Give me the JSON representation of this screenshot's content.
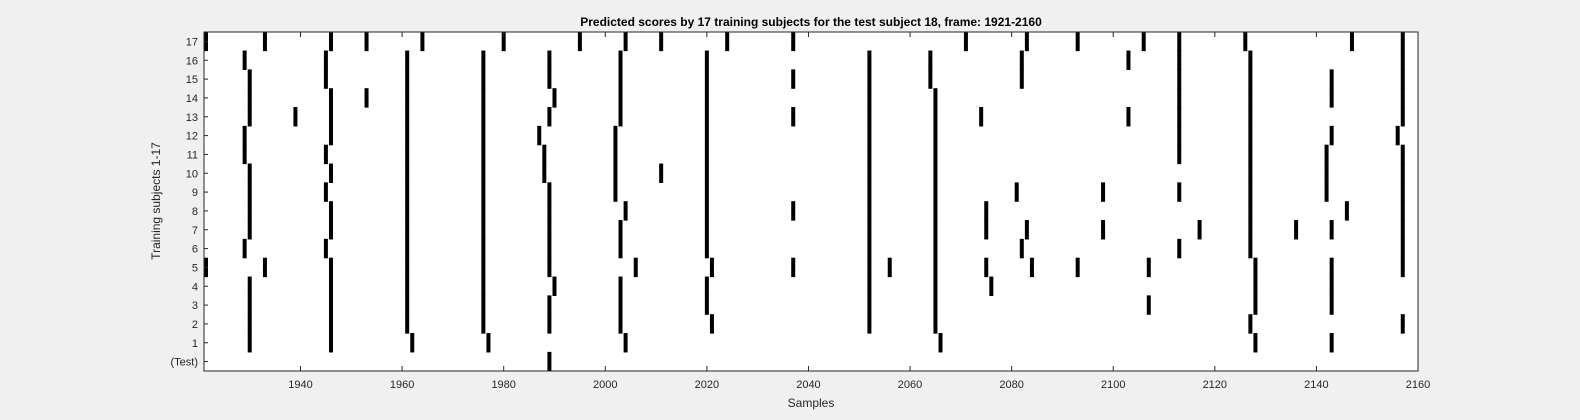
{
  "chart_data": {
    "type": "raster",
    "title": "Predicted scores by 17 training subjects for the test subject 18, frame: 1921-2160",
    "xlabel": "Samples",
    "ylabel": "Training subjects 1-17",
    "xlim": [
      1921,
      2160
    ],
    "xticks": [
      1940,
      1960,
      1980,
      2000,
      2020,
      2040,
      2060,
      2080,
      2100,
      2120,
      2140,
      2160
    ],
    "rows": [
      "(Test)",
      "1",
      "2",
      "3",
      "4",
      "5",
      "6",
      "7",
      "8",
      "9",
      "10",
      "11",
      "12",
      "13",
      "14",
      "15",
      "16",
      "17"
    ],
    "grid": false,
    "mark_color": "#000000",
    "events": {
      "(Test)": [
        1989
      ],
      "1": [
        1930,
        1946,
        1962,
        1977,
        2004,
        2066,
        2128,
        2143
      ],
      "2": [
        1930,
        1946,
        1961,
        1976,
        1989,
        2003,
        2021,
        2052,
        2065,
        2127,
        2157
      ],
      "3": [
        1930,
        1946,
        1961,
        1976,
        1989,
        2003,
        2020,
        2052,
        2065,
        2107,
        2128,
        2143
      ],
      "4": [
        1930,
        1946,
        1961,
        1976,
        1990,
        2003,
        2020,
        2052,
        2065,
        2076,
        2128,
        2143
      ],
      "5": [
        1921,
        1933,
        1946,
        1961,
        1976,
        1989,
        2006,
        2021,
        2037,
        2052,
        2056,
        2065,
        2075,
        2084,
        2093,
        2107,
        2128,
        2143,
        2157
      ],
      "6": [
        1929,
        1945,
        1961,
        1976,
        1989,
        2003,
        2020,
        2052,
        2065,
        2082,
        2113,
        2127,
        2157
      ],
      "7": [
        1930,
        1946,
        1961,
        1976,
        1989,
        2003,
        2020,
        2052,
        2065,
        2075,
        2083,
        2098,
        2117,
        2127,
        2136,
        2143,
        2157
      ],
      "8": [
        1930,
        1946,
        1961,
        1976,
        1989,
        2004,
        2020,
        2037,
        2052,
        2065,
        2075,
        2127,
        2146,
        2157
      ],
      "9": [
        1930,
        1945,
        1961,
        1976,
        1989,
        2002,
        2020,
        2052,
        2065,
        2081,
        2098,
        2113,
        2127,
        2142,
        2157
      ],
      "10": [
        1930,
        1946,
        1961,
        1976,
        1988,
        2002,
        2011,
        2020,
        2052,
        2065,
        2127,
        2142,
        2157
      ],
      "11": [
        1929,
        1945,
        1961,
        1976,
        1988,
        2002,
        2020,
        2052,
        2065,
        2113,
        2127,
        2142,
        2157
      ],
      "12": [
        1929,
        1946,
        1961,
        1976,
        1987,
        2002,
        2020,
        2052,
        2065,
        2113,
        2127,
        2143,
        2156
      ],
      "13": [
        1930,
        1939,
        1946,
        1961,
        1976,
        1989,
        2003,
        2020,
        2037,
        2052,
        2065,
        2074,
        2103,
        2113,
        2127,
        2157
      ],
      "14": [
        1930,
        1946,
        1953,
        1961,
        1976,
        1990,
        2003,
        2020,
        2052,
        2065,
        2113,
        2127,
        2143,
        2157
      ],
      "15": [
        1930,
        1945,
        1961,
        1976,
        1989,
        2003,
        2020,
        2037,
        2052,
        2064,
        2082,
        2113,
        2127,
        2143,
        2157
      ],
      "16": [
        1929,
        1945,
        1961,
        1976,
        1989,
        2003,
        2020,
        2052,
        2064,
        2082,
        2103,
        2113,
        2127,
        2157
      ],
      "17": [
        1921,
        1933,
        1946,
        1953,
        1964,
        1980,
        1995,
        2004,
        2011,
        2024,
        2037,
        2071,
        2083,
        2093,
        2106,
        2113,
        2126,
        2147,
        2157
      ]
    }
  }
}
